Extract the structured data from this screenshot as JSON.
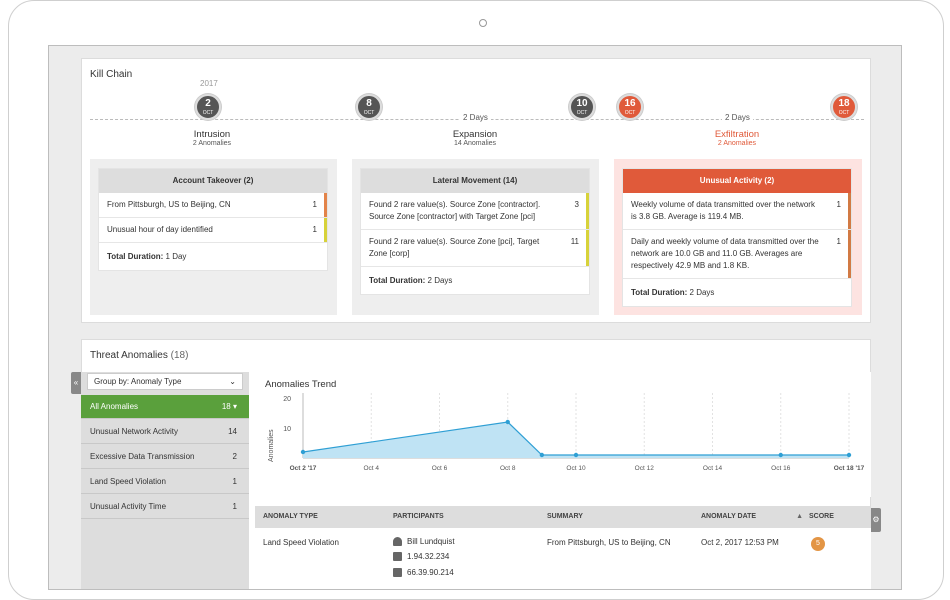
{
  "kill_chain": {
    "title": "Kill Chain",
    "year": "2017",
    "nodes": [
      {
        "day": "2",
        "month": "OCT"
      },
      {
        "day": "8",
        "month": "OCT"
      },
      {
        "day": "10",
        "month": "OCT"
      },
      {
        "day": "16",
        "month": "OCT"
      },
      {
        "day": "18",
        "month": "OCT"
      }
    ],
    "gaps": [
      "2 Days",
      "2 Days"
    ],
    "phases": [
      {
        "title": "Intrusion",
        "sub": "2 Anomalies"
      },
      {
        "title": "Expansion",
        "sub": "14 Anomalies"
      },
      {
        "title": "Exfiltration",
        "sub": "2 Anomalies"
      }
    ],
    "cards": [
      {
        "title": "Account Takeover (2)",
        "rows": [
          {
            "text": "From Pittsburgh, US to Beijing, CN",
            "count": "1"
          },
          {
            "text": "Unusual hour of day identified",
            "count": "1"
          }
        ],
        "total_label": "Total Duration:",
        "total_value": "1 Day"
      },
      {
        "title": "Lateral Movement (14)",
        "rows": [
          {
            "text": "Found 2 rare value(s). Source Zone [contractor]. Source Zone [contractor] with Target Zone [pci]",
            "count": "3"
          },
          {
            "text": "Found 2 rare value(s). Source Zone [pci], Target Zone [corp]",
            "count": "11"
          }
        ],
        "total_label": "Total Duration:",
        "total_value": "2 Days"
      },
      {
        "title": "Unusual Activity (2)",
        "rows": [
          {
            "text": "Weekly volume of data transmitted over the network is 3.8 GB. Average is 119.4 MB.",
            "count": "1"
          },
          {
            "text": "Daily and weekly volume of data transmitted over the network are 10.0 GB and 11.0 GB. Averages are respectively 42.9 MB and 1.8 KB.",
            "count": "1"
          }
        ],
        "total_label": "Total Duration:",
        "total_value": "2 Days"
      }
    ]
  },
  "threat_anomalies": {
    "title": "Threat Anomalies",
    "count": "(18)",
    "group_by": "Group by: Anomaly Type",
    "items": [
      {
        "label": "All Anomalies",
        "count": "18 ▾"
      },
      {
        "label": "Unusual Network Activity",
        "count": "14"
      },
      {
        "label": "Excessive Data Transmission",
        "count": "2"
      },
      {
        "label": "Land Speed Violation",
        "count": "1"
      },
      {
        "label": "Unusual Activity Time",
        "count": "1"
      }
    ]
  },
  "chart_data": {
    "type": "area",
    "title": "Anomalies Trend",
    "ylabel": "Anomalies",
    "xlabel": "",
    "x": [
      "Oct 2 '17",
      "Oct 8",
      "Oct 9",
      "Oct 10",
      "Oct 16",
      "Oct 18 '17"
    ],
    "values": [
      2,
      12,
      1,
      1,
      1,
      1
    ],
    "x_ticks": [
      "Oct 2 '17",
      "Oct 4",
      "Oct 6",
      "Oct 8",
      "Oct 10",
      "Oct 12",
      "Oct 14",
      "Oct 16",
      "Oct 18 '17"
    ],
    "y_ticks": [
      "20",
      "10"
    ],
    "ylim": [
      0,
      20
    ],
    "grid": "vertical dashed",
    "color": "#2f9fd4"
  },
  "table": {
    "headers": [
      "ANOMALY TYPE",
      "PARTICIPANTS",
      "SUMMARY",
      "ANOMALY DATE",
      "SCORE"
    ],
    "sort_icon": "▲",
    "row": {
      "type": "Land Speed Violation",
      "participants": [
        "Bill Lundquist",
        "1.94.32.234",
        "66.39.90.214"
      ],
      "summary": "From Pittsburgh, US to Beijing, CN",
      "date": "Oct 2, 2017 12:53 PM",
      "score": "5"
    }
  },
  "colors": {
    "accent_red": "#e05a3a",
    "accent_green": "#5aa03c",
    "chart_blue": "#2f9fd4"
  }
}
